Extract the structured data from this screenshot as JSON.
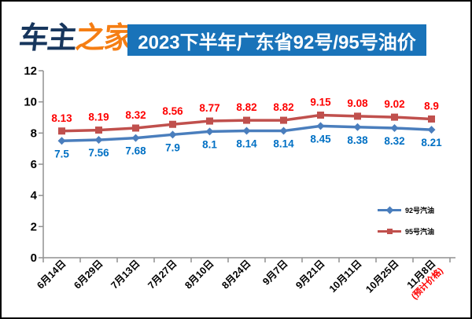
{
  "header": {
    "logo": {
      "part1": "车主",
      "part2": "之家"
    },
    "title": "2023下半年广东省92号/95号油价"
  },
  "colors": {
    "title_bar_bg": "#1973b9",
    "title_text": "#ffffff",
    "logo_blue": "#17365d",
    "logo_orange": "#f57e14",
    "axis": "#919191",
    "series92_line": "#4a7ebd",
    "series92_label": "#0070c4",
    "series95_line": "#c0504d",
    "series95_label": "#fe0000",
    "tick_label": "#000000"
  },
  "chart_data": {
    "type": "line",
    "categories": [
      "6月14日",
      "6月29日",
      "7月13日",
      "7月27日",
      "8月10日",
      "8月24日",
      "9月7日",
      "9月21日",
      "10月11日",
      "10月25日",
      "11月8日"
    ],
    "last_category_note": "(预计价格)",
    "series": [
      {
        "name": "92号汽油",
        "values": [
          7.5,
          7.56,
          7.68,
          7.9,
          8.1,
          8.14,
          8.14,
          8.45,
          8.38,
          8.32,
          8.21
        ],
        "line_color": "#4a7ebd",
        "label_color": "#0070c4",
        "marker": "diamond",
        "label_pos": "below"
      },
      {
        "name": "95号汽油",
        "values": [
          8.13,
          8.19,
          8.32,
          8.56,
          8.77,
          8.82,
          8.82,
          9.15,
          9.08,
          9.02,
          8.9
        ],
        "line_color": "#c0504d",
        "label_color": "#fe0000",
        "marker": "square",
        "label_pos": "above"
      }
    ],
    "ylim": [
      0,
      12
    ],
    "yticks": [
      0,
      2,
      4,
      6,
      8,
      10,
      12
    ],
    "grid": false,
    "legend_position": "inside-right-middle"
  }
}
